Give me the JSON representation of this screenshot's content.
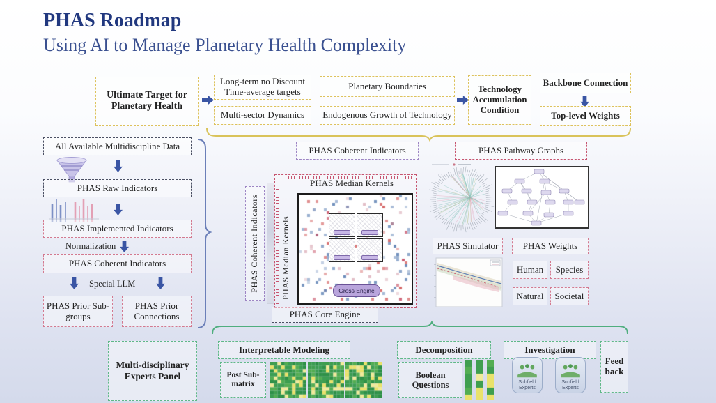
{
  "header": {
    "title": "PHAS Roadmap",
    "subtitle": "Using AI to Manage Planetary Health Complexity"
  },
  "top_row": {
    "ultimate_target": "Ultimate Target for Planetary Health",
    "long_term": "Long-term no Discount Time-average targets",
    "planetary_boundaries": "Planetary Boundaries",
    "multi_sector": "Multi-sector Dynamics",
    "endogenous_growth": "Endogenous Growth of Technology",
    "tech_accumulation": "Technology Accumulation Condition",
    "backbone_connection": "Backbone Connection",
    "top_level_weights": "Top-level Weights"
  },
  "left_pipeline": {
    "all_data": "All Available Multidiscipline Data",
    "raw_indicators": "PHAS Raw Indicators",
    "implemented_indicators": "PHAS Implemented Indicators",
    "normalization": "Normalization",
    "coherent_indicators": "PHAS Coherent Indicators",
    "special_llm": "Special LLM",
    "prior_subgroups": "PHAS Prior Sub-groups",
    "prior_connections": "PHAS Prior Connections"
  },
  "core": {
    "coherent_indicators": "PHAS Coherent Indicators",
    "coherent_indicators_vertical": "PHAS Coherent Indicators",
    "median_kernels": "PHAS Median Kernels",
    "median_kernels_vertical": "PHAS Median Kernels",
    "gross_engine": "Gross Engine",
    "core_engine": "PHAS Core Engine"
  },
  "right_panel": {
    "pathway_graphs": "PHAS Pathway Graphs",
    "simulator": "PHAS Simulator",
    "weights": "PHAS Weights",
    "weight_items": [
      "Human",
      "Species",
      "Natural",
      "Societal"
    ]
  },
  "bottom_panel": {
    "experts_panel": "Multi-disciplinary Experts Panel",
    "interpretable_modeling": "Interpretable Modeling",
    "post_submatrix": "Post Sub-matrix",
    "decomposition": "Decomposition",
    "boolean_questions": "Boolean Questions",
    "investigation": "Investigation",
    "subfield_experts": "Subfield Experts",
    "feedback": "Feed back"
  },
  "colors": {
    "accent_gold": "#ddc25c",
    "accent_pink": "#d3798f",
    "accent_purple": "#9d85c4",
    "accent_crimson": "#c65570",
    "accent_green": "#5fb888",
    "accent_blue_arrow": "#3a55a4",
    "title_blue": "#21387f"
  }
}
